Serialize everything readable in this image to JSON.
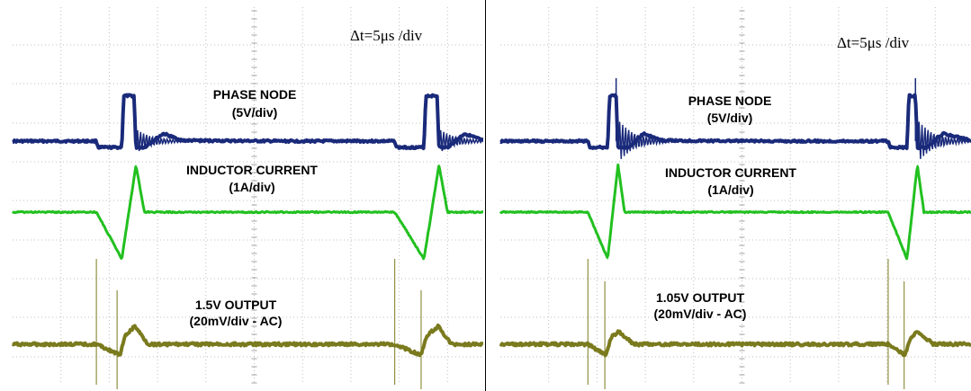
{
  "chart_data": [
    {
      "type": "line",
      "timebase": "Δt=5μs /div",
      "labels": {
        "phase_title": "PHASE NODE",
        "phase_scale": "(5V/div)",
        "current_title": "INDUCTOR CURRENT",
        "current_scale": "(1A/div)",
        "output_title": "1.5V OUTPUT",
        "output_scale": "(20mV/div - AC)"
      },
      "grid": true,
      "x_divisions": 10,
      "series": [
        {
          "name": "PHASE NODE",
          "color": "#1a2a7a",
          "x": [
            0.0,
            4.45,
            4.55,
            5.8,
            5.9,
            6.45,
            6.55,
            7.0,
            8.0,
            9.0,
            14.0,
            19.0,
            20.3,
            20.4,
            21.85,
            21.95,
            22.55,
            22.65,
            23.1,
            24.0,
            25.0
          ],
          "y": [
            0.0,
            0.0,
            -0.5,
            -0.5,
            3.6,
            3.6,
            -0.5,
            -0.5,
            0.6,
            0.05,
            0.0,
            0.0,
            0.0,
            -0.5,
            -0.5,
            3.6,
            3.6,
            -0.5,
            -0.5,
            0.6,
            0.05
          ]
        },
        {
          "name": "INDUCTOR CURRENT",
          "color": "#22c020",
          "x": [
            0.0,
            4.45,
            5.8,
            6.55,
            7.0,
            20.3,
            21.85,
            22.65,
            23.1,
            25.0
          ],
          "y": [
            0.0,
            0.0,
            -1.3,
            1.3,
            0.0,
            0.0,
            -1.3,
            1.3,
            0.0,
            0.0
          ]
        },
        {
          "name": "1.5V OUTPUT",
          "color": "#7a7a1e",
          "x": [
            0.0,
            4.45,
            5.7,
            6.0,
            6.5,
            7.2,
            20.3,
            21.7,
            22.0,
            22.6,
            23.3,
            25.0
          ],
          "y": [
            0.0,
            0.0,
            -0.6,
            0.5,
            1.0,
            0.0,
            0.0,
            -0.6,
            0.5,
            1.0,
            0.0,
            0.0
          ]
        }
      ]
    },
    {
      "type": "line",
      "timebase": "Δt=5μs /div",
      "labels": {
        "phase_title": "PHASE NODE",
        "phase_scale": "(5V/div)",
        "current_title": "INDUCTOR CURRENT",
        "current_scale": "(1A/div)",
        "output_title": "1.05V OUTPUT",
        "output_scale": "(20mV/div - AC)"
      },
      "grid": true,
      "x_divisions": 10,
      "series": [
        {
          "name": "PHASE NODE",
          "color": "#1a2a7a",
          "x": [
            0.0,
            4.65,
            4.75,
            5.7,
            5.8,
            6.15,
            6.25,
            6.8,
            7.6,
            8.6,
            14.0,
            20.6,
            20.7,
            21.6,
            21.7,
            22.05,
            22.15,
            22.7,
            23.5,
            25.0
          ],
          "y": [
            0.0,
            0.0,
            -0.5,
            -0.5,
            3.6,
            3.6,
            -0.5,
            -0.5,
            0.6,
            0.05,
            0.0,
            0.0,
            -0.5,
            -0.5,
            3.6,
            3.6,
            -0.5,
            -0.5,
            0.6,
            0.05
          ]
        },
        {
          "name": "INDUCTOR CURRENT",
          "color": "#22c020",
          "x": [
            0.0,
            4.65,
            5.7,
            6.25,
            6.6,
            20.6,
            21.6,
            22.15,
            22.5,
            25.0
          ],
          "y": [
            0.0,
            0.0,
            -1.3,
            1.3,
            0.0,
            0.0,
            -1.3,
            1.3,
            0.0,
            0.0
          ]
        },
        {
          "name": "1.05V OUTPUT",
          "color": "#7a7a1e",
          "x": [
            0.0,
            4.65,
            5.6,
            5.9,
            6.3,
            7.1,
            20.6,
            21.5,
            21.8,
            22.2,
            23.0,
            25.0
          ],
          "y": [
            0.0,
            0.0,
            -0.6,
            0.4,
            0.7,
            0.0,
            0.0,
            -0.6,
            0.4,
            0.7,
            0.0,
            0.0
          ]
        }
      ]
    }
  ]
}
